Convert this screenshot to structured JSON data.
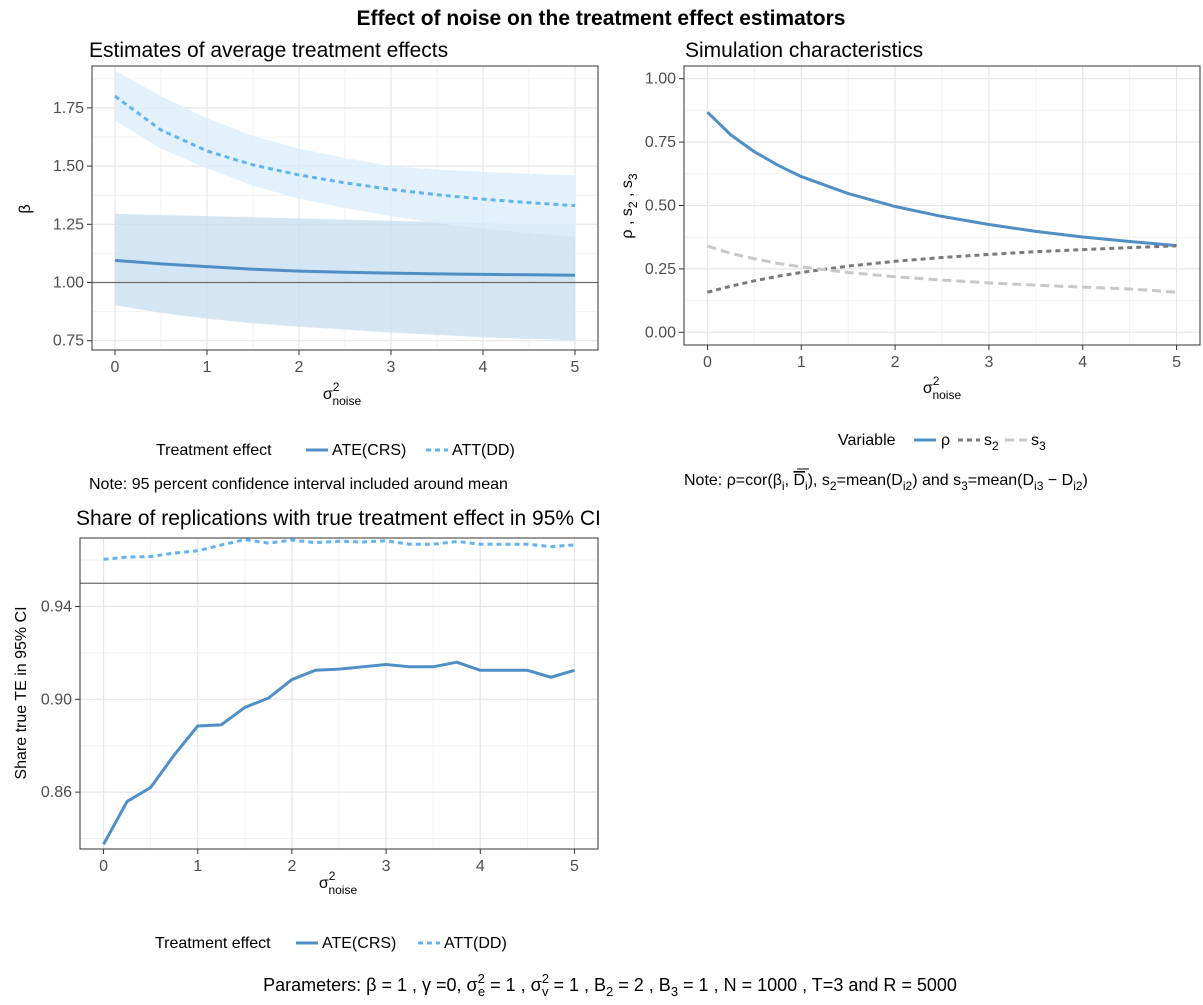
{
  "figure": {
    "title": "Effect of noise on the treatment effect estimators",
    "parameters_label": "Parameters:",
    "parameters_text": "β = 1 , γ =0, σ²e = 1 , σ²v = 1 , B2 = 2 , B3 = 1 , N = 1000 , T=3 and R = 5000"
  },
  "colors": {
    "ate": "#4f8fc6",
    "att": "#65b3ee",
    "ate_band": "#c9dff1",
    "att_band": "#dceefd",
    "rho": "#4f8fc6",
    "s2": "#7a7a7a",
    "s3": "#c8c8c8",
    "reference_line": "#6b6b6b",
    "grid": "#e6e6e6"
  },
  "panel_a": {
    "title": "Estimates of average treatment effects",
    "ylabel": "β",
    "xlabel": "σ²noise",
    "legend_title": "Treatment effect",
    "legend_items": [
      "ATE(CRS)",
      "ATT(DD)"
    ],
    "note": "Note: 95 percent confidence interval included around mean"
  },
  "panel_b": {
    "title": "Simulation characteristics",
    "ylabel": "ρ , s2 , s3",
    "xlabel": "σ²noise",
    "legend_title": "Variable",
    "legend_items": [
      "ρ",
      "s2",
      "s3"
    ],
    "note": "Note: ρ=cor(βi, D̄i),  s2=mean(Di2) and s3=mean(Di3 − Di2)"
  },
  "panel_c": {
    "title": "Share of replications with true treatment effect in 95% CI",
    "ylabel": "Share true TE in 95% CI",
    "xlabel": "σ²noise",
    "legend_title": "Treatment effect",
    "legend_items": [
      "ATE(CRS)",
      "ATT(DD)"
    ]
  },
  "chart_data": [
    {
      "type": "line",
      "title": "Estimates of average treatment effects",
      "xlabel": "σ²noise",
      "ylabel": "β",
      "xlim": [
        -0.25,
        5.25
      ],
      "ylim": [
        0.71,
        1.93
      ],
      "xticks": [
        0,
        1,
        2,
        3,
        4,
        5
      ],
      "yticks": [
        0.75,
        1.0,
        1.25,
        1.5,
        1.75
      ],
      "ytick_labels": [
        "0.75",
        "1.00",
        "1.25",
        "1.50",
        "1.75"
      ],
      "hline": 1.0,
      "grid": true,
      "legend_position": "bottom",
      "x": [
        0,
        0.5,
        1,
        1.5,
        2,
        2.5,
        3,
        3.5,
        4,
        4.5,
        5
      ],
      "series": [
        {
          "name": "ATE(CRS)",
          "style": "solid",
          "values": [
            1.095,
            1.08,
            1.068,
            1.057,
            1.049,
            1.044,
            1.04,
            1.037,
            1.035,
            1.033,
            1.031
          ],
          "lower": [
            0.902,
            0.87,
            0.845,
            0.825,
            0.81,
            0.798,
            0.785,
            0.775,
            0.765,
            0.758,
            0.752
          ],
          "upper": [
            1.295,
            1.29,
            1.285,
            1.28,
            1.275,
            1.27,
            1.265,
            1.26,
            1.255,
            1.25,
            1.245
          ]
        },
        {
          "name": "ATT(DD)",
          "style": "dashed",
          "values": [
            1.8,
            1.655,
            1.565,
            1.505,
            1.462,
            1.428,
            1.4,
            1.377,
            1.358,
            1.343,
            1.33
          ],
          "lower": [
            1.695,
            1.575,
            1.49,
            1.415,
            1.36,
            1.32,
            1.285,
            1.255,
            1.232,
            1.212,
            1.195
          ],
          "upper": [
            1.91,
            1.8,
            1.705,
            1.63,
            1.575,
            1.535,
            1.5,
            1.485,
            1.475,
            1.467,
            1.46
          ]
        }
      ]
    },
    {
      "type": "line",
      "title": "Simulation characteristics",
      "xlabel": "σ²noise",
      "ylabel": "ρ , s2 , s3",
      "xlim": [
        -0.25,
        5.25
      ],
      "ylim": [
        -0.05,
        1.05
      ],
      "xticks": [
        0,
        1,
        2,
        3,
        4,
        5
      ],
      "yticks": [
        0.0,
        0.25,
        0.5,
        0.75,
        1.0
      ],
      "ytick_labels": [
        "0.00",
        "0.25",
        "0.50",
        "0.75",
        "1.00"
      ],
      "grid": true,
      "legend_position": "bottom",
      "x": [
        0,
        0.25,
        0.5,
        0.75,
        1,
        1.5,
        2,
        2.5,
        3,
        3.5,
        4,
        4.5,
        5
      ],
      "series": [
        {
          "name": "ρ",
          "style": "solid",
          "values": [
            0.868,
            0.778,
            0.712,
            0.659,
            0.614,
            0.547,
            0.496,
            0.457,
            0.425,
            0.398,
            0.376,
            0.358,
            0.342
          ]
        },
        {
          "name": "s2",
          "style": "dashed",
          "values": [
            0.158,
            0.182,
            0.203,
            0.221,
            0.236,
            0.261,
            0.28,
            0.295,
            0.307,
            0.318,
            0.326,
            0.334,
            0.341
          ]
        },
        {
          "name": "s3",
          "style": "longdash",
          "values": [
            0.34,
            0.311,
            0.29,
            0.272,
            0.258,
            0.236,
            0.219,
            0.206,
            0.195,
            0.186,
            0.178,
            0.171,
            0.158
          ]
        }
      ]
    },
    {
      "type": "line",
      "title": "Share of replications with true treatment effect in 95% CI",
      "xlabel": "σ²noise",
      "ylabel": "Share true TE in 95% CI",
      "xlim": [
        -0.25,
        5.25
      ],
      "ylim": [
        0.8355,
        0.9695
      ],
      "xticks": [
        0,
        1,
        2,
        3,
        4,
        5
      ],
      "yticks": [
        0.86,
        0.9,
        0.94
      ],
      "ytick_labels": [
        "0.86",
        "0.90",
        "0.94"
      ],
      "hline": 0.95,
      "grid": true,
      "legend_position": "bottom",
      "x": [
        0,
        0.25,
        0.5,
        0.75,
        1,
        1.25,
        1.5,
        1.75,
        2,
        2.25,
        2.5,
        2.75,
        3,
        3.25,
        3.5,
        3.75,
        4,
        4.25,
        4.5,
        4.75,
        5
      ],
      "series": [
        {
          "name": "ATE(CRS)",
          "style": "solid",
          "values": [
            0.8375,
            0.856,
            0.862,
            0.876,
            0.8885,
            0.889,
            0.8965,
            0.9005,
            0.9085,
            0.9125,
            0.913,
            0.914,
            0.915,
            0.914,
            0.914,
            0.916,
            0.9125,
            0.9125,
            0.9125,
            0.9095,
            0.9125
          ]
        },
        {
          "name": "ATT(DD)",
          "style": "dashed",
          "values": [
            0.9603,
            0.9613,
            0.9615,
            0.963,
            0.964,
            0.9665,
            0.9688,
            0.9673,
            0.9686,
            0.9675,
            0.9681,
            0.9678,
            0.9683,
            0.9668,
            0.9668,
            0.968,
            0.9668,
            0.9668,
            0.9668,
            0.9658,
            0.9665
          ]
        }
      ]
    }
  ]
}
